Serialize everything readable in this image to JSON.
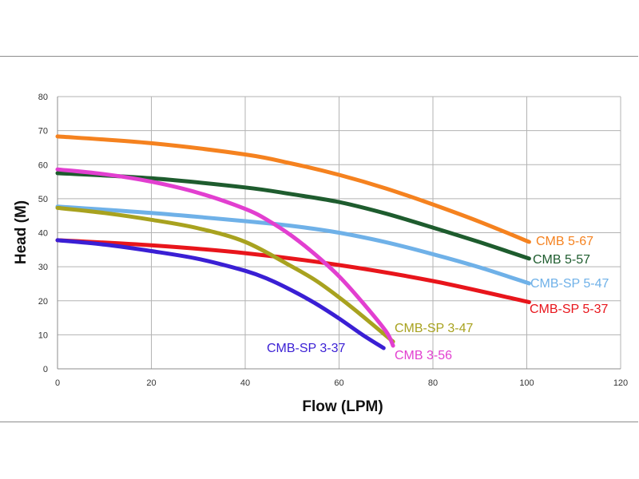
{
  "chart_data": {
    "type": "line",
    "title": "",
    "xlabel": "Flow (LPM)",
    "ylabel": "Head (M)",
    "xlim": [
      0,
      120
    ],
    "ylim": [
      0,
      80
    ],
    "xticks": [
      "0",
      "20",
      "40",
      "60",
      "80",
      "100",
      "120"
    ],
    "yticks": [
      "0",
      "10",
      "20",
      "30",
      "40",
      "50",
      "60",
      "70",
      "80"
    ],
    "grid": true,
    "legend": "inline labels at line ends",
    "series": [
      {
        "name": "CMB 5-67",
        "color": "#f5821f",
        "x": [
          0,
          20,
          40,
          50,
          60,
          70,
          80,
          90,
          100.5
        ],
        "y": [
          68.3,
          66.3,
          63,
          60.3,
          57,
          53,
          48.3,
          43.2,
          37.3
        ]
      },
      {
        "name": "CMB 5-57",
        "color": "#1e5c2e",
        "x": [
          0,
          20,
          40,
          50,
          60,
          70,
          80,
          90,
          100.5
        ],
        "y": [
          57.5,
          56,
          53.3,
          51.3,
          49,
          45.6,
          41.5,
          37.2,
          32.4
        ]
      },
      {
        "name": "CMB-SP 5-47",
        "color": "#6fb1e8",
        "x": [
          0,
          20,
          40,
          50,
          60,
          70,
          80,
          90,
          100.5
        ],
        "y": [
          47.7,
          45.8,
          43.4,
          42,
          40,
          37.2,
          33.7,
          29.8,
          25.1
        ]
      },
      {
        "name": "CMB-SP 5-37",
        "color": "#e8151b",
        "x": [
          0,
          20,
          40,
          60,
          80,
          100.5
        ],
        "y": [
          37.8,
          36.3,
          34,
          30.5,
          25.8,
          19.6
        ]
      },
      {
        "name": "CMB-SP 3-47",
        "color": "#a8a21f",
        "x": [
          0,
          10,
          20,
          30,
          40,
          50,
          55,
          60,
          65,
          71.5
        ],
        "y": [
          47.3,
          45.8,
          43.8,
          41.3,
          37.3,
          30,
          26,
          21,
          15.5,
          8
        ]
      },
      {
        "name": "CMB 3-56",
        "color": "#e23fd0",
        "x": [
          0,
          10,
          20,
          30,
          40,
          45,
          50,
          55,
          60,
          65,
          70,
          71.5
        ],
        "y": [
          58.6,
          57.2,
          55,
          51.7,
          47,
          43.5,
          39,
          33.5,
          27.2,
          19.5,
          11,
          6.8
        ]
      },
      {
        "name": "CMB-SP 3-37",
        "color": "#3a1fd4",
        "x": [
          0,
          10,
          20,
          30,
          40,
          45,
          50,
          55,
          60,
          65,
          69.5
        ],
        "y": [
          37.8,
          36.5,
          34.6,
          32.3,
          28.8,
          26.3,
          23,
          19.2,
          14.8,
          10,
          6.1
        ]
      }
    ]
  }
}
